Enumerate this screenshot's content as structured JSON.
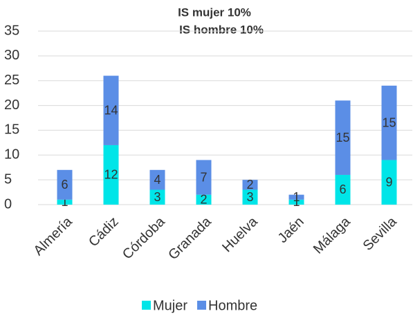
{
  "chart_data": {
    "type": "stacked_bar",
    "title": "IS mujer 10%",
    "subtitle": "IS hombre 10%",
    "categories": [
      "Almería",
      "Cádiz",
      "Córdoba",
      "Granada",
      "Huelva",
      "Jaén",
      "Málaga",
      "Sevilla"
    ],
    "series": [
      {
        "name": "Mujer",
        "color": "#00e5e8",
        "values": [
          1,
          12,
          3,
          2,
          3,
          1,
          6,
          9
        ]
      },
      {
        "name": "Hombre",
        "color": "#5b8ee6",
        "values": [
          6,
          14,
          4,
          7,
          2,
          1,
          15,
          15
        ]
      }
    ],
    "ylim": [
      0,
      35
    ],
    "yticks": [
      0,
      5,
      10,
      15,
      20,
      25,
      30,
      35
    ],
    "grid": true,
    "legend": "bottom"
  }
}
